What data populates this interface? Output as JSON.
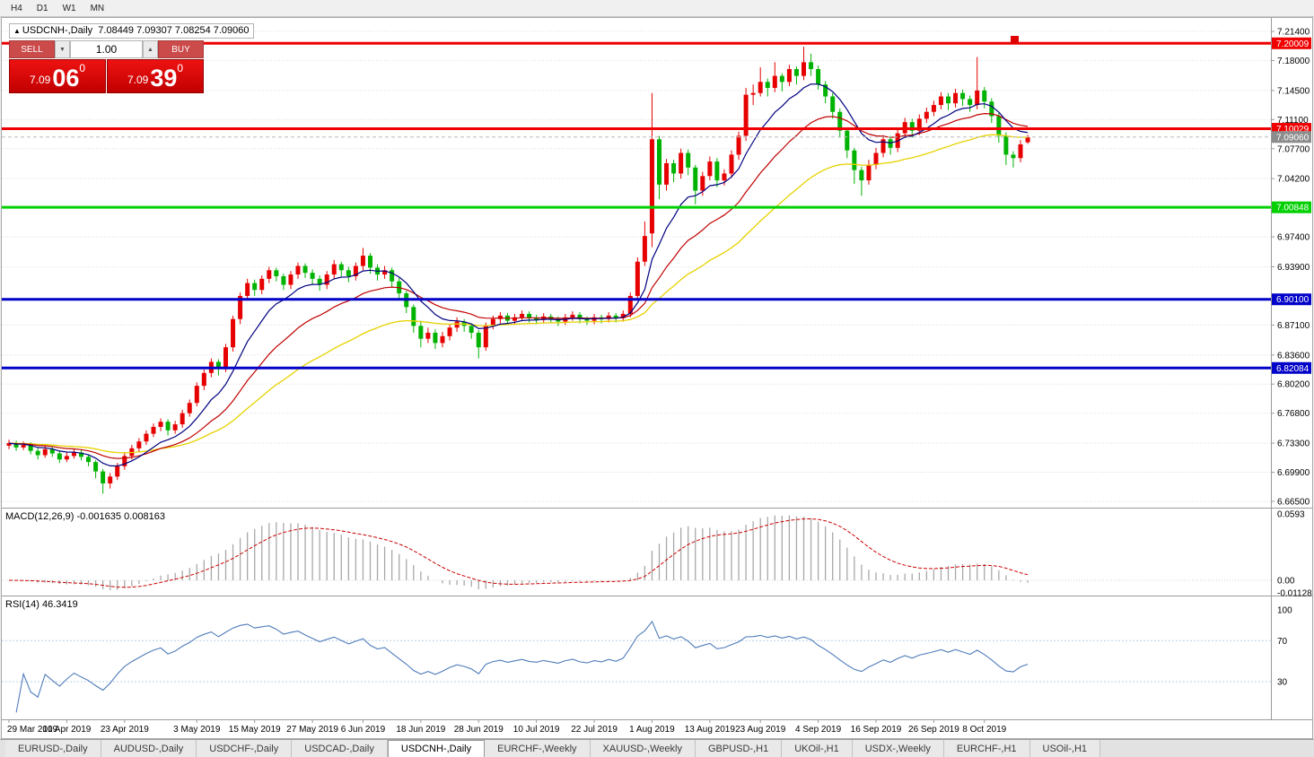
{
  "toolbar": {
    "timeframes": [
      "H4",
      "D1",
      "W1",
      "MN"
    ]
  },
  "chart": {
    "symbol": "USDCNH-,Daily",
    "ohlc": "7.08449 7.09307 7.08254 7.09060"
  },
  "trade_panel": {
    "sell_label": "SELL",
    "buy_label": "BUY",
    "volume": "1.00",
    "sell_price_prefix": "7.09",
    "sell_price_big": "06",
    "sell_price_sup": "0",
    "buy_price_prefix": "7.09",
    "buy_price_big": "39",
    "buy_price_sup": "0"
  },
  "indicators": {
    "macd_label": "MACD(12,26,9) -0.001635 0.008163",
    "rsi_label": "RSI(14) 46.3419",
    "macd_axis": [
      "0.0593",
      "0.00",
      "-0.011289"
    ],
    "rsi_axis": [
      "100",
      "70",
      "30"
    ]
  },
  "price_axis": {
    "labels": [
      "7.21400",
      "7.18000",
      "7.14500",
      "7.11100",
      "7.07700",
      "7.04200",
      "6.97400",
      "6.93900",
      "6.87100",
      "6.83600",
      "6.80200",
      "6.76800",
      "6.73300",
      "6.69900",
      "6.66500"
    ]
  },
  "hlines": [
    {
      "label": "7.20009",
      "color": "#f00000"
    },
    {
      "label": "7.10029",
      "color": "#f00000"
    },
    {
      "label": "7.00848",
      "color": "#00d000"
    },
    {
      "label": "6.90100",
      "color": "#0202c8"
    },
    {
      "label": "6.82084",
      "color": "#0202c8"
    }
  ],
  "current_price": {
    "label": "7.09060",
    "color": "#8c8c8c"
  },
  "colors": {
    "up": "#e60000",
    "down": "#00b300",
    "ma_fast": "#000080",
    "ma_mid": "#c00000",
    "ma_slow": "#e6d200",
    "macd_hist": "#a8a8a8",
    "macd_signal": "#cc0000",
    "rsi_line": "#4f7cba",
    "grid": "#dcdcdc"
  },
  "chart_data": {
    "type": "candlestick",
    "symbol": "USDCNH",
    "timeframe": "Daily",
    "price_range": [
      6.665,
      7.214
    ],
    "candles": [
      [
        6.73,
        6.737,
        6.726,
        6.733
      ],
      [
        6.733,
        6.736,
        6.724,
        6.728
      ],
      [
        6.728,
        6.735,
        6.725,
        6.731
      ],
      [
        6.731,
        6.734,
        6.72,
        6.724
      ],
      [
        6.724,
        6.727,
        6.714,
        6.719
      ],
      [
        6.719,
        6.73,
        6.716,
        6.726
      ],
      [
        6.726,
        6.729,
        6.717,
        6.721
      ],
      [
        6.721,
        6.724,
        6.71,
        6.714
      ],
      [
        6.714,
        6.722,
        6.711,
        6.718
      ],
      [
        6.718,
        6.726,
        6.715,
        6.722
      ],
      [
        6.722,
        6.725,
        6.713,
        6.717
      ],
      [
        6.717,
        6.72,
        6.706,
        6.711
      ],
      [
        6.711,
        6.713,
        6.692,
        6.7
      ],
      [
        6.7,
        6.703,
        6.674,
        6.686
      ],
      [
        6.686,
        6.698,
        6.68,
        6.694
      ],
      [
        6.694,
        6.71,
        6.69,
        6.706
      ],
      [
        6.706,
        6.722,
        6.702,
        6.718
      ],
      [
        6.718,
        6.731,
        6.714,
        6.727
      ],
      [
        6.727,
        6.739,
        6.723,
        6.735
      ],
      [
        6.735,
        6.748,
        6.731,
        6.744
      ],
      [
        6.744,
        6.756,
        6.74,
        6.752
      ],
      [
        6.752,
        6.762,
        6.747,
        6.758
      ],
      [
        6.758,
        6.761,
        6.742,
        6.748
      ],
      [
        6.748,
        6.759,
        6.744,
        6.755
      ],
      [
        6.755,
        6.772,
        6.751,
        6.768
      ],
      [
        6.768,
        6.784,
        6.764,
        6.78
      ],
      [
        6.78,
        6.804,
        6.776,
        6.8
      ],
      [
        6.8,
        6.819,
        6.795,
        6.815
      ],
      [
        6.815,
        6.832,
        6.81,
        6.828
      ],
      [
        6.828,
        6.831,
        6.812,
        6.82
      ],
      [
        6.82,
        6.849,
        6.816,
        6.845
      ],
      [
        6.845,
        6.882,
        6.84,
        6.878
      ],
      [
        6.878,
        6.909,
        6.872,
        6.905
      ],
      [
        6.905,
        6.925,
        6.9,
        6.92
      ],
      [
        6.92,
        6.924,
        6.905,
        6.912
      ],
      [
        6.912,
        6.929,
        6.907,
        6.925
      ],
      [
        6.925,
        6.939,
        6.92,
        6.935
      ],
      [
        6.935,
        6.938,
        6.922,
        6.928
      ],
      [
        6.928,
        6.931,
        6.912,
        6.918
      ],
      [
        6.918,
        6.934,
        6.913,
        6.93
      ],
      [
        6.93,
        6.944,
        6.925,
        6.94
      ],
      [
        6.94,
        6.943,
        6.926,
        6.932
      ],
      [
        6.932,
        6.936,
        6.918,
        6.925
      ],
      [
        6.925,
        6.929,
        6.911,
        6.918
      ],
      [
        6.918,
        6.934,
        6.913,
        6.93
      ],
      [
        6.93,
        6.947,
        6.925,
        6.942
      ],
      [
        6.942,
        6.945,
        6.928,
        6.935
      ],
      [
        6.935,
        6.939,
        6.921,
        6.928
      ],
      [
        6.928,
        6.944,
        6.923,
        6.94
      ],
      [
        6.94,
        6.961,
        6.935,
        6.952
      ],
      [
        6.952,
        6.955,
        6.931,
        6.938
      ],
      [
        6.938,
        6.942,
        6.923,
        6.93
      ],
      [
        6.93,
        6.94,
        6.925,
        6.935
      ],
      [
        6.935,
        6.938,
        6.915,
        6.922
      ],
      [
        6.922,
        6.926,
        6.901,
        6.908
      ],
      [
        6.908,
        6.911,
        6.885,
        6.892
      ],
      [
        6.892,
        6.895,
        6.862,
        6.87
      ],
      [
        6.87,
        6.876,
        6.845,
        6.855
      ],
      [
        6.855,
        6.868,
        6.85,
        6.862
      ],
      [
        6.862,
        6.866,
        6.843,
        6.85
      ],
      [
        6.85,
        6.863,
        6.845,
        6.858
      ],
      [
        6.858,
        6.872,
        6.853,
        6.868
      ],
      [
        6.868,
        6.88,
        6.863,
        6.875
      ],
      [
        6.875,
        6.878,
        6.863,
        6.87
      ],
      [
        6.87,
        6.873,
        6.855,
        6.862
      ],
      [
        6.862,
        6.865,
        6.832,
        6.845
      ],
      [
        6.845,
        6.874,
        6.841,
        6.87
      ],
      [
        6.87,
        6.882,
        6.866,
        6.878
      ],
      [
        6.878,
        6.886,
        6.873,
        6.882
      ],
      [
        6.882,
        6.885,
        6.871,
        6.876
      ],
      [
        6.876,
        6.884,
        6.872,
        6.88
      ],
      [
        6.88,
        6.888,
        6.876,
        6.884
      ],
      [
        6.884,
        6.887,
        6.874,
        6.879
      ],
      [
        6.879,
        6.883,
        6.872,
        6.877
      ],
      [
        6.877,
        6.885,
        6.873,
        6.881
      ],
      [
        6.881,
        6.884,
        6.873,
        6.878
      ],
      [
        6.878,
        6.881,
        6.87,
        6.875
      ],
      [
        6.875,
        6.884,
        6.871,
        6.88
      ],
      [
        6.88,
        6.887,
        6.876,
        6.883
      ],
      [
        6.883,
        6.886,
        6.873,
        6.878
      ],
      [
        6.878,
        6.881,
        6.871,
        6.876
      ],
      [
        6.876,
        6.884,
        6.872,
        6.88
      ],
      [
        6.88,
        6.883,
        6.873,
        6.878
      ],
      [
        6.878,
        6.886,
        6.874,
        6.882
      ],
      [
        6.882,
        6.885,
        6.874,
        6.879
      ],
      [
        6.879,
        6.888,
        6.875,
        6.884
      ],
      [
        6.884,
        6.909,
        6.88,
        6.905
      ],
      [
        6.905,
        6.95,
        6.9,
        6.945
      ],
      [
        6.945,
        6.992,
        6.94,
        6.975
      ],
      [
        6.978,
        7.142,
        6.962,
        7.088
      ],
      [
        7.088,
        7.092,
        7.018,
        7.035
      ],
      [
        7.035,
        7.065,
        7.028,
        7.06
      ],
      [
        7.06,
        7.064,
        7.038,
        7.048
      ],
      [
        7.048,
        7.077,
        7.042,
        7.072
      ],
      [
        7.072,
        7.076,
        7.046,
        7.055
      ],
      [
        7.055,
        7.058,
        7.012,
        7.028
      ],
      [
        7.028,
        7.05,
        7.022,
        7.045
      ],
      [
        7.045,
        7.068,
        7.04,
        7.062
      ],
      [
        7.062,
        7.066,
        7.032,
        7.04
      ],
      [
        7.04,
        7.053,
        7.034,
        7.048
      ],
      [
        7.048,
        7.075,
        7.043,
        7.07
      ],
      [
        7.07,
        7.097,
        7.064,
        7.092
      ],
      [
        7.092,
        7.148,
        7.086,
        7.14
      ],
      [
        7.14,
        7.152,
        7.128,
        7.142
      ],
      [
        7.142,
        7.172,
        7.138,
        7.155
      ],
      [
        7.155,
        7.159,
        7.138,
        7.148
      ],
      [
        7.148,
        7.178,
        7.143,
        7.162
      ],
      [
        7.162,
        7.165,
        7.144,
        7.155
      ],
      [
        7.155,
        7.175,
        7.15,
        7.17
      ],
      [
        7.17,
        7.173,
        7.152,
        7.162
      ],
      [
        7.162,
        7.196,
        7.157,
        7.178
      ],
      [
        7.178,
        7.188,
        7.162,
        7.17
      ],
      [
        7.17,
        7.174,
        7.146,
        7.152
      ],
      [
        7.152,
        7.156,
        7.13,
        7.138
      ],
      [
        7.138,
        7.142,
        7.112,
        7.12
      ],
      [
        7.12,
        7.124,
        7.09,
        7.098
      ],
      [
        7.098,
        7.102,
        7.066,
        7.075
      ],
      [
        7.075,
        7.078,
        7.036,
        7.052
      ],
      [
        7.052,
        7.056,
        7.022,
        7.04
      ],
      [
        7.04,
        7.064,
        7.035,
        7.058
      ],
      [
        7.058,
        7.078,
        7.053,
        7.072
      ],
      [
        7.072,
        7.093,
        7.067,
        7.088
      ],
      [
        7.088,
        7.092,
        7.07,
        7.078
      ],
      [
        7.078,
        7.1,
        7.073,
        7.095
      ],
      [
        7.095,
        7.113,
        7.09,
        7.108
      ],
      [
        7.108,
        7.112,
        7.09,
        7.098
      ],
      [
        7.098,
        7.117,
        7.093,
        7.112
      ],
      [
        7.112,
        7.125,
        7.107,
        7.12
      ],
      [
        7.12,
        7.133,
        7.115,
        7.128
      ],
      [
        7.128,
        7.143,
        7.123,
        7.138
      ],
      [
        7.138,
        7.142,
        7.122,
        7.13
      ],
      [
        7.13,
        7.147,
        7.125,
        7.142
      ],
      [
        7.142,
        7.146,
        7.127,
        7.135
      ],
      [
        7.135,
        7.139,
        7.12,
        7.128
      ],
      [
        7.128,
        7.184,
        7.123,
        7.145
      ],
      [
        7.145,
        7.149,
        7.124,
        7.132
      ],
      [
        7.132,
        7.136,
        7.107,
        7.115
      ],
      [
        7.115,
        7.119,
        7.084,
        7.092
      ],
      [
        7.092,
        7.096,
        7.058,
        7.07
      ],
      [
        7.07,
        7.074,
        7.055,
        7.066
      ],
      [
        7.066,
        7.087,
        7.061,
        7.082
      ],
      [
        7.0845,
        7.0931,
        7.0825,
        7.0906
      ]
    ],
    "date_labels": [
      {
        "i": 0,
        "label": "29 Mar 2019"
      },
      {
        "i": 8,
        "label": "10 Apr 2019"
      },
      {
        "i": 16,
        "label": "23 Apr 2019"
      },
      {
        "i": 26,
        "label": "3 May 2019"
      },
      {
        "i": 34,
        "label": "15 May 2019"
      },
      {
        "i": 42,
        "label": "27 May 2019"
      },
      {
        "i": 49,
        "label": "6 Jun 2019"
      },
      {
        "i": 57,
        "label": "18 Jun 2019"
      },
      {
        "i": 65,
        "label": "28 Jun 2019"
      },
      {
        "i": 73,
        "label": "10 Jul 2019"
      },
      {
        "i": 81,
        "label": "22 Jul 2019"
      },
      {
        "i": 89,
        "label": "1 Aug 2019"
      },
      {
        "i": 97,
        "label": "13 Aug 2019"
      },
      {
        "i": 104,
        "label": "23 Aug 2019"
      },
      {
        "i": 112,
        "label": "4 Sep 2019"
      },
      {
        "i": 120,
        "label": "16 Sep 2019"
      },
      {
        "i": 128,
        "label": "26 Sep 2019"
      },
      {
        "i": 135,
        "label": "8 Oct 2019"
      }
    ]
  },
  "tabs": {
    "items": [
      "EURUSD-,Daily",
      "AUDUSD-,Daily",
      "USDCHF-,Daily",
      "USDCAD-,Daily",
      "USDCNH-,Daily",
      "EURCHF-,Weekly",
      "XAUUSD-,Weekly",
      "GBPUSD-,H1",
      "UKOil-,H1",
      "USDX-,Weekly",
      "EURCHF-,H1",
      "USOil-,H1"
    ],
    "active_index": 4
  }
}
